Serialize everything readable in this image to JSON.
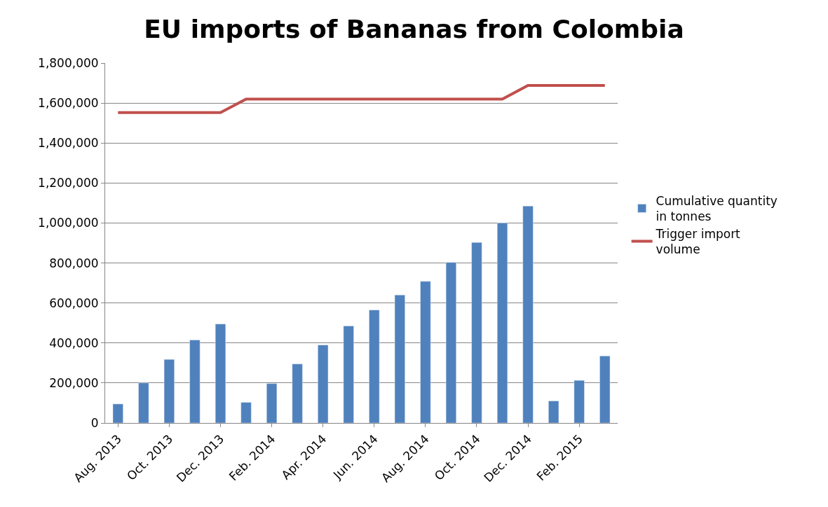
{
  "chart_data": {
    "type": "bar",
    "title": "EU imports of Bananas from Colombia",
    "categories": [
      "Aug. 2013",
      null,
      "Oct. 2013",
      null,
      "Dec. 2013",
      null,
      "Feb. 2014",
      null,
      "Apr. 2014",
      null,
      "Jun. 2014",
      null,
      "Aug. 2014",
      null,
      "Oct. 2014",
      null,
      "Dec. 2014",
      null,
      "Feb. 2015",
      null
    ],
    "series": [
      {
        "name": "Cumulative quantity in tonnes",
        "color": "#4f81bd",
        "values": [
          95000,
          200000,
          318000,
          415000,
          495000,
          103000,
          197000,
          295000,
          390000,
          485000,
          565000,
          640000,
          708000,
          803000,
          903000,
          1000000,
          1085000,
          110000,
          213000,
          335000
        ]
      },
      {
        "name": "Trigger import volume",
        "type": "line",
        "color": "#c0504d",
        "values": [
          1552000,
          1552000,
          1552000,
          1552000,
          1552000,
          1620000,
          1620000,
          1620000,
          1620000,
          1620000,
          1620000,
          1620000,
          1620000,
          1620000,
          1620000,
          1620000,
          1688000,
          1688000,
          1688000,
          1688000
        ]
      }
    ],
    "ylim": [
      0,
      1800000
    ],
    "yticks": [
      {
        "value": 0,
        "label": "0"
      },
      {
        "value": 200000,
        "label": "200,000"
      },
      {
        "value": 400000,
        "label": "400,000"
      },
      {
        "value": 600000,
        "label": "600,000"
      },
      {
        "value": 800000,
        "label": "800,000"
      },
      {
        "value": 1000000,
        "label": "1,000,000"
      },
      {
        "value": 1200000,
        "label": "1,200,000"
      },
      {
        "value": 1400000,
        "label": "1,400,000"
      },
      {
        "value": 1600000,
        "label": "1,600,000"
      },
      {
        "value": 1800000,
        "label": "1,800,000"
      }
    ],
    "grid": "y",
    "legend": "right",
    "marker": "none",
    "line_style": "solid"
  }
}
